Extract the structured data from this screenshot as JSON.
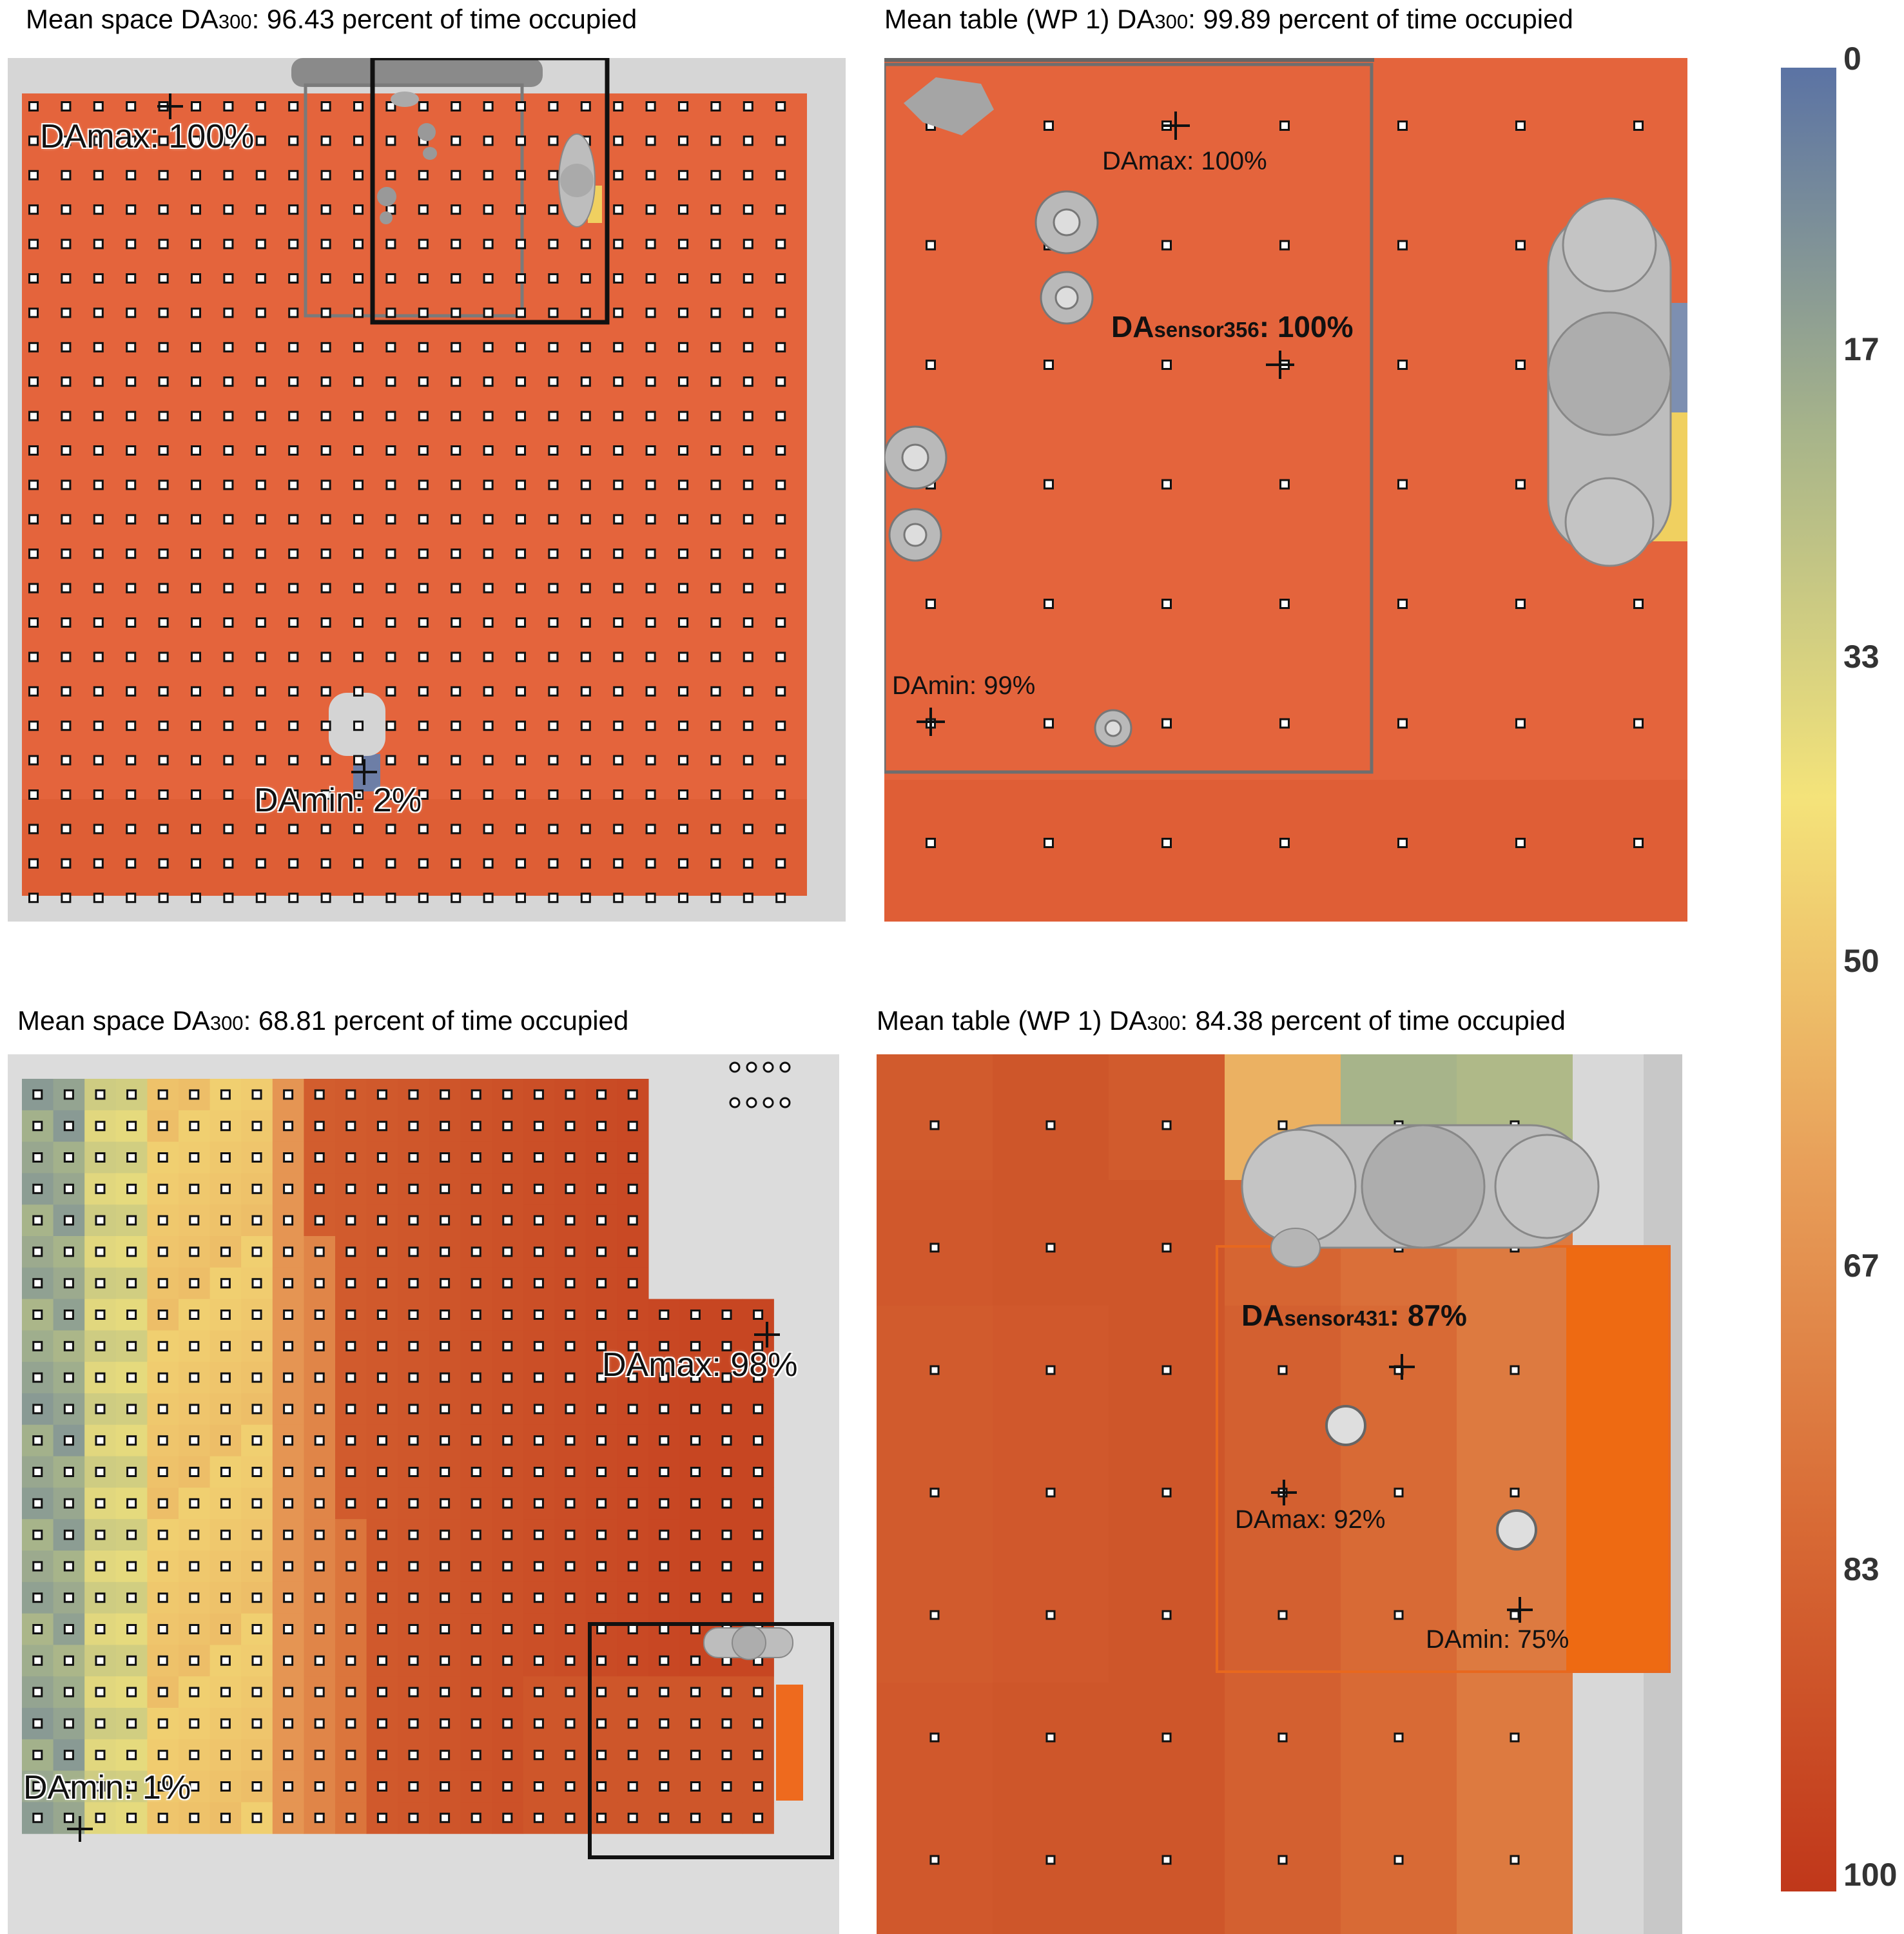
{
  "chart_data": [
    {
      "type": "heatmap",
      "panel": "top-left",
      "title_parts": [
        "Mean space DA",
        "300",
        ": 96.43 percent of time occupied"
      ],
      "grid": {
        "columns": 24,
        "rows": 24
      },
      "labels": {
        "max": "DAmax: 100%",
        "min": "DAmin: 2%"
      },
      "values": {
        "DAmax": 100,
        "DAmin": 2,
        "mean": 96.43
      },
      "grid_on": true
    },
    {
      "type": "heatmap",
      "panel": "top-right",
      "title_parts": [
        "Mean table (WP 1) DA",
        "300",
        ": 99.89 percent of time occupied"
      ],
      "grid": {
        "columns": 7,
        "rows": 7
      },
      "labels": {
        "max": "DAmax: 100%",
        "sensor_prefix": "DA",
        "sensor_sub": "sensor356",
        "sensor_value": ": 100%",
        "min": "DAmin: 99%"
      },
      "values": {
        "DAmax": 100,
        "DAsensor356": 100,
        "DAmin": 99,
        "mean": 99.89
      },
      "grid_on": true
    },
    {
      "type": "heatmap",
      "panel": "bottom-left",
      "title_parts": [
        "Mean space DA",
        "300",
        ": 68.81 percent of time occupied"
      ],
      "grid": {
        "columns": 24,
        "rows": 24
      },
      "labels": {
        "max": "DAmax: 98%",
        "min": "DAmin: 1%"
      },
      "values": {
        "DAmax": 98,
        "DAmin": 1,
        "mean": 68.81
      },
      "grid_on": true
    },
    {
      "type": "heatmap",
      "panel": "bottom-right",
      "title_parts": [
        "Mean table (WP 1) DA",
        "300",
        ": 84.38 percent of time occupied"
      ],
      "grid": {
        "columns": 6,
        "rows": 7
      },
      "labels": {
        "sensor_prefix": "DA",
        "sensor_sub": "sensor431",
        "sensor_value": ": 87%",
        "max": "DAmax: 92%",
        "min": "DAmin: 75%"
      },
      "values": {
        "DAsensor431": 87,
        "DAmax": 92,
        "DAmin": 75,
        "mean": 84.38
      },
      "grid_on": true
    }
  ],
  "colorbar": {
    "ticks": [
      "0",
      "17",
      "33",
      "50",
      "67",
      "83",
      "100"
    ],
    "range": [
      0,
      100
    ],
    "colors": [
      "#5b73a4",
      "#a7b48a",
      "#f4e37a",
      "#e8a05a",
      "#d86a35",
      "#c0371a"
    ]
  }
}
